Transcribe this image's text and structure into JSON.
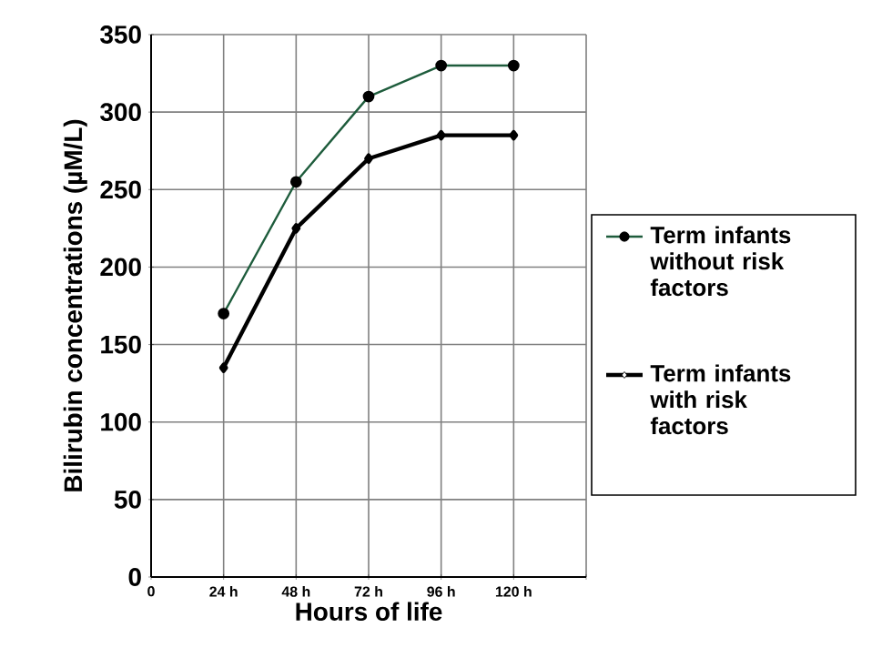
{
  "chart_data": {
    "type": "line",
    "xlabel": "Hours of life",
    "ylabel": "Bilirubin concentrations (µM/L)",
    "x": [
      24,
      48,
      72,
      96,
      120
    ],
    "series": [
      {
        "name": "Term infants without risk factors",
        "color": "#1e5c3c",
        "marker": "circle",
        "values": [
          170,
          255,
          310,
          330,
          330
        ]
      },
      {
        "name": "Term infants with risk factors",
        "color": "#000000",
        "marker": "diamond",
        "values": [
          135,
          225,
          270,
          285,
          285
        ]
      }
    ],
    "xlim": [
      0,
      144
    ],
    "xticks": [
      0,
      {
        "value": 24,
        "label": "24 h"
      },
      {
        "value": 48,
        "label": "48 h"
      },
      {
        "value": 72,
        "label": "72 h"
      },
      {
        "value": 96,
        "label": "96 h"
      },
      {
        "value": 120,
        "label": "120 h"
      },
      {
        "value": 144,
        "label": null
      }
    ],
    "ylim": [
      0,
      350
    ],
    "yticks": [
      0,
      50,
      100,
      150,
      200,
      250,
      300,
      350
    ],
    "grid": true,
    "legend": "right"
  }
}
